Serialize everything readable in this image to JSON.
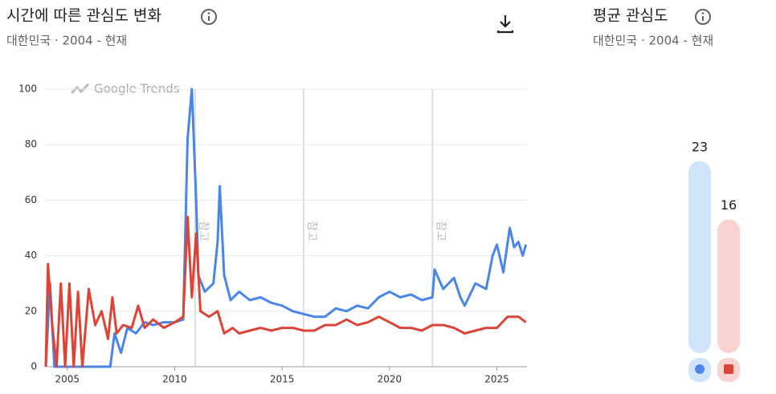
{
  "chart_data": [
    {
      "type": "line",
      "title": "시간에 따른 관심도 변화",
      "subtitle": "대한민국 · 2004 - 현재",
      "watermark": "Google Trends",
      "xlim": [
        2004,
        2026.4
      ],
      "xticks": [
        2005,
        2010,
        2015,
        2020,
        2025
      ],
      "ylim": [
        0,
        100
      ],
      "yticks": [
        0,
        20,
        40,
        60,
        80,
        100
      ],
      "grid": true,
      "annotations": [
        {
          "x": 2010.95,
          "text": "참고"
        },
        {
          "x": 2016,
          "text": "참고"
        },
        {
          "x": 2022,
          "text": "참고"
        }
      ],
      "series": [
        {
          "color": "#4a86e8",
          "x": [
            2004.0,
            2004.2,
            2004.4,
            2005.0,
            2006.0,
            2007.0,
            2007.2,
            2007.5,
            2007.8,
            2008.2,
            2008.6,
            2009.0,
            2009.5,
            2010.0,
            2010.4,
            2010.6,
            2010.8,
            2011.0,
            2011.1,
            2011.4,
            2011.8,
            2012.0,
            2012.1,
            2012.3,
            2012.6,
            2013.0,
            2013.5,
            2014.0,
            2014.5,
            2015.0,
            2015.5,
            2016.0,
            2016.5,
            2017.0,
            2017.5,
            2018.0,
            2018.5,
            2019.0,
            2019.5,
            2020.0,
            2020.5,
            2021.0,
            2021.5,
            2022.0,
            2022.1,
            2022.5,
            2023.0,
            2023.3,
            2023.5,
            2024.0,
            2024.5,
            2024.8,
            2025.0,
            2025.3,
            2025.6,
            2025.8,
            2026.0,
            2026.2,
            2026.35
          ],
          "values": [
            0,
            30,
            0,
            0,
            0,
            0,
            12,
            5,
            14,
            12,
            16,
            15,
            16,
            16,
            17,
            82,
            100,
            60,
            33,
            27,
            30,
            45,
            65,
            33,
            24,
            27,
            24,
            25,
            23,
            22,
            20,
            19,
            18,
            18,
            21,
            20,
            22,
            21,
            25,
            27,
            25,
            26,
            24,
            25,
            35,
            28,
            32,
            25,
            22,
            30,
            28,
            40,
            44,
            34,
            50,
            43,
            45,
            40,
            44
          ]
        },
        {
          "color": "#db4437",
          "x": [
            2004.0,
            2004.1,
            2004.3,
            2004.5,
            2004.7,
            2004.9,
            2005.1,
            2005.3,
            2005.5,
            2005.7,
            2006.0,
            2006.3,
            2006.6,
            2006.9,
            2007.1,
            2007.3,
            2007.6,
            2008.0,
            2008.3,
            2008.6,
            2009.0,
            2009.5,
            2010.0,
            2010.4,
            2010.6,
            2010.8,
            2011.0,
            2011.2,
            2011.6,
            2012.0,
            2012.3,
            2012.7,
            2013.0,
            2013.5,
            2014.0,
            2014.5,
            2015.0,
            2015.5,
            2016.0,
            2016.5,
            2017.0,
            2017.5,
            2018.0,
            2018.5,
            2019.0,
            2019.5,
            2020.0,
            2020.5,
            2021.0,
            2021.5,
            2022.0,
            2022.5,
            2023.0,
            2023.5,
            2024.0,
            2024.5,
            2025.0,
            2025.5,
            2026.0,
            2026.35
          ],
          "values": [
            0,
            37,
            15,
            0,
            30,
            0,
            30,
            0,
            27,
            0,
            28,
            15,
            20,
            10,
            25,
            12,
            15,
            14,
            22,
            14,
            17,
            14,
            16,
            18,
            54,
            25,
            48,
            20,
            18,
            20,
            12,
            14,
            12,
            13,
            14,
            13,
            14,
            14,
            13,
            13,
            15,
            15,
            17,
            15,
            16,
            18,
            16,
            14,
            14,
            13,
            15,
            15,
            14,
            12,
            13,
            14,
            14,
            18,
            18,
            16
          ]
        }
      ]
    },
    {
      "type": "bar",
      "title": "평균 관심도",
      "subtitle": "대한민국 · 2004 - 현재",
      "values": [
        23,
        16
      ],
      "colors": [
        "#4a86e8",
        "#db4437"
      ],
      "track_colors": [
        "#d2e3fc",
        "#fad2cf"
      ]
    }
  ]
}
